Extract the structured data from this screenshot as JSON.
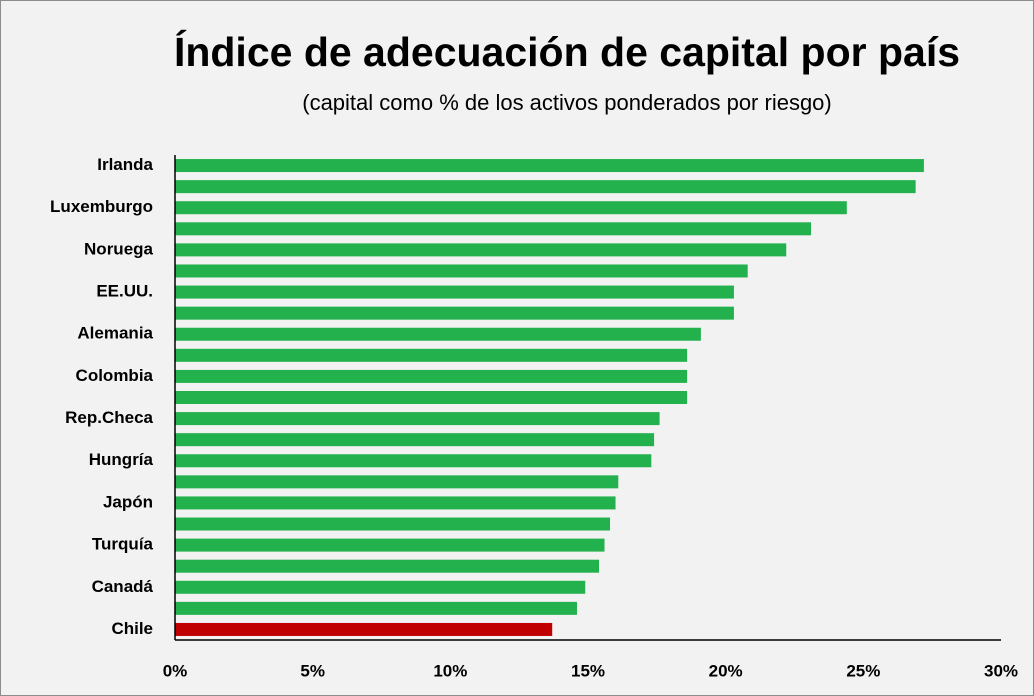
{
  "chart_data": {
    "type": "barh",
    "title": "Índice de adecuación de capital por país",
    "subtitle": "(capital como % de los activos ponderados por riesgo)",
    "categories": [
      "Irlanda",
      null,
      "Luxemburgo",
      null,
      "Noruega",
      null,
      "EE.UU.",
      null,
      "Alemania",
      null,
      "Colombia",
      null,
      "Rep.Checa",
      null,
      "Hungría",
      null,
      "Japón",
      null,
      "Turquía",
      null,
      "Canadá",
      null,
      "Chile"
    ],
    "values": [
      27.2,
      26.9,
      24.4,
      23.1,
      22.2,
      20.8,
      20.3,
      20.3,
      19.1,
      18.6,
      18.6,
      18.6,
      17.6,
      17.4,
      17.3,
      16.1,
      16.0,
      15.8,
      15.6,
      15.4,
      14.9,
      14.6,
      13.7
    ],
    "colors": [
      "#22b14c",
      "#22b14c",
      "#22b14c",
      "#22b14c",
      "#22b14c",
      "#22b14c",
      "#22b14c",
      "#22b14c",
      "#22b14c",
      "#22b14c",
      "#22b14c",
      "#22b14c",
      "#22b14c",
      "#22b14c",
      "#22b14c",
      "#22b14c",
      "#22b14c",
      "#22b14c",
      "#22b14c",
      "#22b14c",
      "#22b14c",
      "#22b14c",
      "#c00000"
    ],
    "xlim": [
      0,
      30
    ],
    "xticks": [
      {
        "value": 0,
        "label": "0%"
      },
      {
        "value": 5,
        "label": "5%"
      },
      {
        "value": 10,
        "label": "10%"
      },
      {
        "value": 15,
        "label": "15%"
      },
      {
        "value": 20,
        "label": "20%"
      },
      {
        "value": 25,
        "label": "25%"
      },
      {
        "value": 30,
        "label": "30%"
      }
    ],
    "grid": false
  }
}
